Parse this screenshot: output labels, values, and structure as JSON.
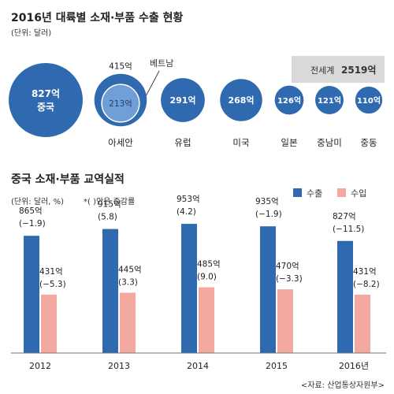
{
  "bubble_chart": {
    "title": "2016년 대륙별 소재·부품 수출 현황",
    "unit": "(단위: 달러)",
    "world_label": "전세계",
    "world_value": "2519억",
    "inner_callout": "베트남",
    "colors": {
      "bubble": "#2f6ab0",
      "bubble_inner": "#6f9fd6",
      "world_box": "#d9d9d9"
    }
  },
  "bar_chart": {
    "title": "중국 소재·부품 교역실적",
    "unit": "(단위: 달러, %)",
    "note": "*( )안은 증감률",
    "legend": [
      {
        "name": "수출",
        "color": "#2f6ab0"
      },
      {
        "name": "수입",
        "color": "#f4a9a0"
      }
    ],
    "source": "<자료: 산업통상자원부>"
  },
  "chart_data": [
    {
      "type": "bubble",
      "title": "2016년 대륙별 소재·부품 수출 현황",
      "unit": "달러",
      "total": {
        "label": "전세계",
        "value": 2519
      },
      "points": [
        {
          "category": "중국",
          "value": 827,
          "label": "827억"
        },
        {
          "category": "아세안",
          "value": 415,
          "label": "415억",
          "inner": {
            "category": "베트남",
            "value": 213,
            "label": "213억"
          }
        },
        {
          "category": "유럽",
          "value": 291,
          "label": "291억"
        },
        {
          "category": "미국",
          "value": 268,
          "label": "268억"
        },
        {
          "category": "일본",
          "value": 126,
          "label": "126억"
        },
        {
          "category": "중남미",
          "value": 121,
          "label": "121억"
        },
        {
          "category": "중동",
          "value": 110,
          "label": "110억"
        }
      ]
    },
    {
      "type": "bar",
      "title": "중국 소재·부품 교역실적",
      "categories": [
        "2012",
        "2013",
        "2014",
        "2015",
        "2016년"
      ],
      "series": [
        {
          "name": "수출",
          "values": [
            865,
            915,
            953,
            935,
            827
          ],
          "labels": [
            "865억",
            "915억",
            "953억",
            "935억",
            "827억"
          ],
          "changes": [
            "(−1.9)",
            "(5.8)",
            "(4.2)",
            "(−1.9)",
            "(−11.5)"
          ]
        },
        {
          "name": "수입",
          "values": [
            431,
            445,
            485,
            470,
            431
          ],
          "labels": [
            "431억",
            "445억",
            "485억",
            "470억",
            "431억"
          ],
          "changes": [
            "(−5.3)",
            "(3.3)",
            "(9.0)",
            "(−3.3)",
            "(−8.2)"
          ]
        }
      ],
      "ylim": [
        0,
        1000
      ]
    }
  ]
}
